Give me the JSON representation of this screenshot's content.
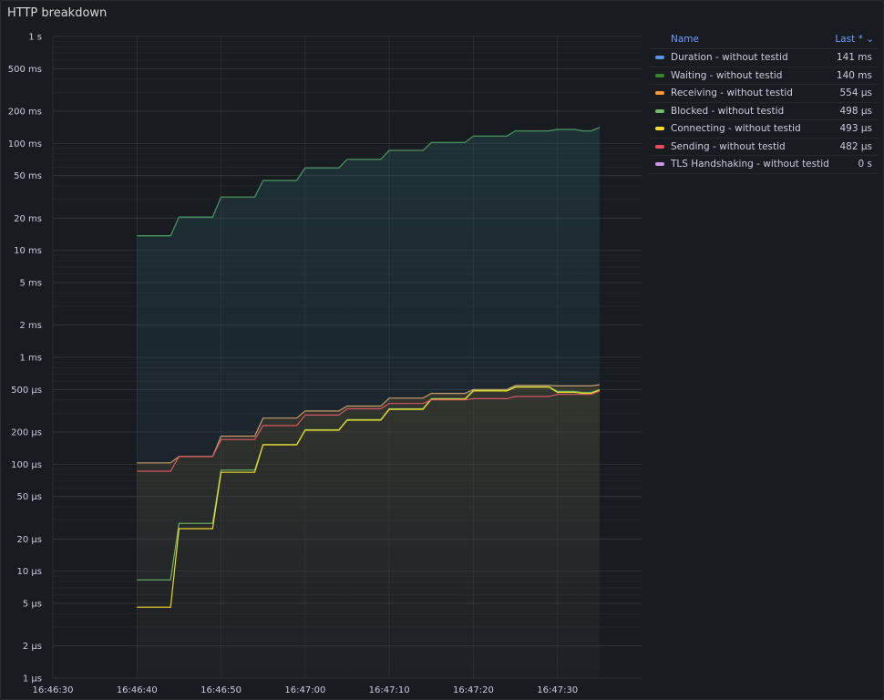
{
  "panel": {
    "title": "HTTP breakdown"
  },
  "legend": {
    "name_header": "Name",
    "last_header": "Last * ⌄",
    "items": [
      {
        "name": "Duration - without testid",
        "value": "141 ms",
        "color": "#5794f2"
      },
      {
        "name": "Waiting - without testid",
        "value": "140 ms",
        "color": "#37872d"
      },
      {
        "name": "Receiving - without testid",
        "value": "554 µs",
        "color": "#ff9830"
      },
      {
        "name": "Blocked - without testid",
        "value": "498 µs",
        "color": "#73bf69"
      },
      {
        "name": "Connecting - without testid",
        "value": "493 µs",
        "color": "#fade2a"
      },
      {
        "name": "Sending - without testid",
        "value": "482 µs",
        "color": "#f2495c"
      },
      {
        "name": "TLS Handshaking - without testid",
        "value": "0 s",
        "color": "#ca95e5"
      }
    ]
  },
  "chart_data": {
    "type": "line",
    "yscale": "log",
    "ylim_us": [
      1,
      1000000
    ],
    "xlim_s": [
      0,
      70
    ],
    "x_tick_labels": [
      "16:46:30",
      "16:46:40",
      "16:46:50",
      "16:47:00",
      "16:47:10",
      "16:47:20",
      "16:47:30"
    ],
    "x_tick_s": [
      0,
      10,
      20,
      30,
      40,
      50,
      60
    ],
    "y_tick_labels": [
      "1 s",
      "500 ms",
      "200 ms",
      "100 ms",
      "50 ms",
      "20 ms",
      "10 ms",
      "5 ms",
      "2 ms",
      "1 ms",
      "500 µs",
      "200 µs",
      "100 µs",
      "50 µs",
      "20 µs",
      "10 µs",
      "5 µs",
      "2 µs",
      "1 µs"
    ],
    "y_tick_us": [
      1000000,
      500000,
      200000,
      100000,
      50000,
      20000,
      10000,
      5000,
      2000,
      1000,
      500,
      200,
      100,
      50,
      20,
      10,
      5,
      2,
      1
    ],
    "series": [
      {
        "name": "Duration - without testid",
        "color": "#5794f2",
        "unit": "µs",
        "points": [
          [
            10,
            13700
          ],
          [
            14,
            13700
          ],
          [
            15,
            20500
          ],
          [
            19,
            20500
          ],
          [
            20,
            31500
          ],
          [
            24,
            31500
          ],
          [
            25,
            45000
          ],
          [
            29,
            45000
          ],
          [
            30,
            59000
          ],
          [
            34,
            59000
          ],
          [
            35,
            71000
          ],
          [
            39,
            71000
          ],
          [
            40,
            86000
          ],
          [
            44,
            86000
          ],
          [
            45,
            102000
          ],
          [
            49,
            102000
          ],
          [
            50,
            117000
          ],
          [
            54,
            117000
          ],
          [
            55,
            131000
          ],
          [
            59,
            131000
          ],
          [
            60,
            135000
          ],
          [
            62,
            135000
          ],
          [
            63,
            131000
          ],
          [
            64,
            131000
          ],
          [
            65,
            141000
          ]
        ]
      },
      {
        "name": "Waiting - without testid",
        "color": "#37872d",
        "unit": "µs",
        "points": [
          [
            10,
            13600
          ],
          [
            14,
            13600
          ],
          [
            15,
            20400
          ],
          [
            19,
            20400
          ],
          [
            20,
            31400
          ],
          [
            24,
            31400
          ],
          [
            25,
            44900
          ],
          [
            29,
            44900
          ],
          [
            30,
            58900
          ],
          [
            34,
            58900
          ],
          [
            35,
            70900
          ],
          [
            39,
            70900
          ],
          [
            40,
            85900
          ],
          [
            44,
            85900
          ],
          [
            45,
            101900
          ],
          [
            49,
            101900
          ],
          [
            50,
            116900
          ],
          [
            54,
            116900
          ],
          [
            55,
            130900
          ],
          [
            59,
            130900
          ],
          [
            60,
            134900
          ],
          [
            62,
            134900
          ],
          [
            63,
            130900
          ],
          [
            64,
            130900
          ],
          [
            65,
            140000
          ]
        ]
      },
      {
        "name": "Receiving - without testid",
        "color": "#ff9830",
        "unit": "µs",
        "points": [
          [
            10,
            103
          ],
          [
            14,
            103
          ],
          [
            15,
            118
          ],
          [
            19,
            118
          ],
          [
            20,
            183
          ],
          [
            24,
            183
          ],
          [
            25,
            270
          ],
          [
            29,
            270
          ],
          [
            30,
            315
          ],
          [
            34,
            315
          ],
          [
            35,
            350
          ],
          [
            39,
            350
          ],
          [
            40,
            415
          ],
          [
            44,
            415
          ],
          [
            45,
            460
          ],
          [
            49,
            460
          ],
          [
            50,
            500
          ],
          [
            54,
            500
          ],
          [
            55,
            545
          ],
          [
            59,
            545
          ],
          [
            60,
            540
          ],
          [
            64,
            540
          ],
          [
            65,
            554
          ]
        ]
      },
      {
        "name": "Blocked - without testid",
        "color": "#73bf69",
        "unit": "µs",
        "points": [
          [
            10,
            8.3
          ],
          [
            14,
            8.3
          ],
          [
            15,
            28
          ],
          [
            19,
            28
          ],
          [
            20,
            88
          ],
          [
            24,
            88
          ],
          [
            25,
            153
          ],
          [
            29,
            153
          ],
          [
            30,
            210
          ],
          [
            34,
            210
          ],
          [
            35,
            262
          ],
          [
            39,
            262
          ],
          [
            40,
            330
          ],
          [
            44,
            330
          ],
          [
            45,
            410
          ],
          [
            49,
            410
          ],
          [
            50,
            490
          ],
          [
            54,
            490
          ],
          [
            55,
            530
          ],
          [
            59,
            530
          ],
          [
            60,
            480
          ],
          [
            62,
            480
          ],
          [
            63,
            470
          ],
          [
            64,
            470
          ],
          [
            65,
            498
          ]
        ]
      },
      {
        "name": "Connecting - without testid",
        "color": "#fade2a",
        "unit": "µs",
        "points": [
          [
            10,
            4.6
          ],
          [
            14,
            4.6
          ],
          [
            15,
            25
          ],
          [
            19,
            25
          ],
          [
            20,
            84
          ],
          [
            24,
            84
          ],
          [
            25,
            152
          ],
          [
            29,
            152
          ],
          [
            30,
            208
          ],
          [
            34,
            208
          ],
          [
            35,
            258
          ],
          [
            39,
            258
          ],
          [
            40,
            326
          ],
          [
            44,
            326
          ],
          [
            45,
            405
          ],
          [
            49,
            405
          ],
          [
            50,
            485
          ],
          [
            54,
            485
          ],
          [
            55,
            525
          ],
          [
            59,
            525
          ],
          [
            60,
            470
          ],
          [
            62,
            470
          ],
          [
            63,
            460
          ],
          [
            64,
            460
          ],
          [
            65,
            493
          ]
        ]
      },
      {
        "name": "Sending - without testid",
        "color": "#f2495c",
        "unit": "µs",
        "points": [
          [
            10,
            86
          ],
          [
            14,
            86
          ],
          [
            15,
            118
          ],
          [
            19,
            118
          ],
          [
            20,
            170
          ],
          [
            24,
            170
          ],
          [
            25,
            230
          ],
          [
            29,
            230
          ],
          [
            30,
            288
          ],
          [
            34,
            288
          ],
          [
            35,
            330
          ],
          [
            39,
            330
          ],
          [
            40,
            370
          ],
          [
            44,
            370
          ],
          [
            45,
            400
          ],
          [
            49,
            400
          ],
          [
            50,
            410
          ],
          [
            54,
            410
          ],
          [
            55,
            430
          ],
          [
            59,
            430
          ],
          [
            60,
            450
          ],
          [
            64,
            450
          ],
          [
            65,
            482
          ]
        ]
      },
      {
        "name": "TLS Handshaking - without testid",
        "color": "#ca95e5",
        "unit": "µs",
        "points": []
      }
    ]
  }
}
